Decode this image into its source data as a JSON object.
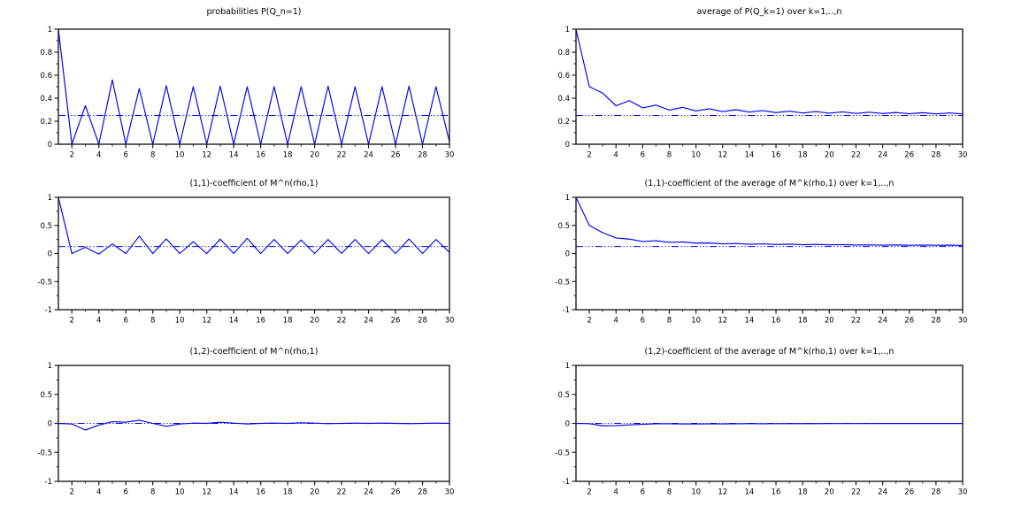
{
  "figure": {
    "background_color": "#ffffff",
    "line_color": "#0000ee",
    "reference_line_color": "#0000ee",
    "axis_color": "#1c1c1c",
    "text_color": "#000000"
  },
  "chart_data": [
    {
      "type": "line",
      "title": "probabilities P(Q_n=1)",
      "xlabel": "",
      "ylabel": "",
      "x": [
        1,
        2,
        3,
        4,
        5,
        6,
        7,
        8,
        9,
        10,
        11,
        12,
        13,
        14,
        15,
        16,
        17,
        18,
        19,
        20,
        21,
        22,
        23,
        24,
        25,
        26,
        27,
        28,
        29,
        30
      ],
      "values": [
        1,
        0,
        0.335,
        0,
        0.56,
        0,
        0.485,
        0,
        0.51,
        0,
        0.5,
        0,
        0.505,
        0,
        0.5,
        0,
        0.5,
        0,
        0.5,
        0,
        0.505,
        0,
        0.5,
        0,
        0.5,
        0,
        0.505,
        0,
        0.5,
        0.02
      ],
      "reference_line": 0.25,
      "xlim": [
        1,
        30
      ],
      "ylim": [
        0,
        1
      ],
      "xticks": [
        2,
        4,
        6,
        8,
        10,
        12,
        14,
        16,
        18,
        20,
        22,
        24,
        26,
        28,
        30
      ],
      "x_minor_step": 1,
      "yticks": [
        0,
        0.2,
        0.4,
        0.6,
        0.8,
        1
      ],
      "ytick_labels": [
        "0",
        "0.2",
        "0.4",
        "0.6",
        "0.8",
        "1"
      ],
      "y_minor_step": 0.1,
      "grid": false,
      "legend": null
    },
    {
      "type": "line",
      "title": "average of P(Q_k=1) over k=1,..,n",
      "xlabel": "",
      "ylabel": "",
      "x": [
        1,
        2,
        3,
        4,
        5,
        6,
        7,
        8,
        9,
        10,
        11,
        12,
        13,
        14,
        15,
        16,
        17,
        18,
        19,
        20,
        21,
        22,
        23,
        24,
        25,
        26,
        27,
        28,
        29,
        30
      ],
      "values": [
        1,
        0.5,
        0.445,
        0.334,
        0.379,
        0.316,
        0.34,
        0.297,
        0.321,
        0.289,
        0.308,
        0.283,
        0.3,
        0.279,
        0.293,
        0.275,
        0.288,
        0.272,
        0.284,
        0.27,
        0.281,
        0.268,
        0.278,
        0.267,
        0.276,
        0.265,
        0.274,
        0.264,
        0.272,
        0.264
      ],
      "reference_line": 0.25,
      "xlim": [
        1,
        30
      ],
      "ylim": [
        0,
        1
      ],
      "xticks": [
        2,
        4,
        6,
        8,
        10,
        12,
        14,
        16,
        18,
        20,
        22,
        24,
        26,
        28,
        30
      ],
      "x_minor_step": 1,
      "yticks": [
        0,
        0.2,
        0.4,
        0.6,
        0.8,
        1
      ],
      "ytick_labels": [
        "0",
        "0.2",
        "0.4",
        "0.6",
        "0.8",
        "1"
      ],
      "y_minor_step": 0.1,
      "grid": false,
      "legend": null
    },
    {
      "type": "line",
      "title": "(1,1)-coefficient of M^n(rho,1)",
      "xlabel": "",
      "ylabel": "",
      "x": [
        1,
        2,
        3,
        4,
        5,
        6,
        7,
        8,
        9,
        10,
        11,
        12,
        13,
        14,
        15,
        16,
        17,
        18,
        19,
        20,
        21,
        22,
        23,
        24,
        25,
        26,
        27,
        28,
        29,
        30
      ],
      "values": [
        1,
        0,
        0.11,
        -0.01,
        0.17,
        0,
        0.31,
        0,
        0.26,
        0,
        0.21,
        0,
        0.255,
        0,
        0.27,
        0,
        0.25,
        0,
        0.24,
        0,
        0.25,
        0,
        0.25,
        0,
        0.245,
        0,
        0.26,
        0,
        0.25,
        0.02
      ],
      "reference_line": 0.125,
      "xlim": [
        1,
        30
      ],
      "ylim": [
        -1,
        1
      ],
      "xticks": [
        2,
        4,
        6,
        8,
        10,
        12,
        14,
        16,
        18,
        20,
        22,
        24,
        26,
        28,
        30
      ],
      "x_minor_step": 1,
      "yticks": [
        -1,
        -0.5,
        0,
        0.5,
        1
      ],
      "ytick_labels": [
        "-1",
        "-0.5",
        "0",
        "0.5",
        "1"
      ],
      "y_minor_step": 0.25,
      "grid": false,
      "legend": null
    },
    {
      "type": "line",
      "title": "(1,1)-coefficient of the average of M^k(rho,1) over k=1,..,n",
      "xlabel": "",
      "ylabel": "",
      "x": [
        1,
        2,
        3,
        4,
        5,
        6,
        7,
        8,
        9,
        10,
        11,
        12,
        13,
        14,
        15,
        16,
        17,
        18,
        19,
        20,
        21,
        22,
        23,
        24,
        25,
        26,
        27,
        28,
        29,
        30
      ],
      "values": [
        1,
        0.5,
        0.37,
        0.277,
        0.256,
        0.213,
        0.227,
        0.199,
        0.206,
        0.185,
        0.187,
        0.172,
        0.178,
        0.165,
        0.172,
        0.161,
        0.166,
        0.157,
        0.162,
        0.154,
        0.158,
        0.151,
        0.155,
        0.149,
        0.153,
        0.147,
        0.151,
        0.146,
        0.149,
        0.145
      ],
      "reference_line": 0.125,
      "xlim": [
        1,
        30
      ],
      "ylim": [
        -1,
        1
      ],
      "xticks": [
        2,
        4,
        6,
        8,
        10,
        12,
        14,
        16,
        18,
        20,
        22,
        24,
        26,
        28,
        30
      ],
      "x_minor_step": 1,
      "yticks": [
        -1,
        -0.5,
        0,
        0.5,
        1
      ],
      "ytick_labels": [
        "-1",
        "-0.5",
        "0",
        "0.5",
        "1"
      ],
      "y_minor_step": 0.25,
      "grid": false,
      "legend": null
    },
    {
      "type": "line",
      "title": "(1,2)-coefficient of M^n(rho,1)",
      "xlabel": "",
      "ylabel": "",
      "x": [
        1,
        2,
        3,
        4,
        5,
        6,
        7,
        8,
        9,
        10,
        11,
        12,
        13,
        14,
        15,
        16,
        17,
        18,
        19,
        20,
        21,
        22,
        23,
        24,
        25,
        26,
        27,
        28,
        29,
        30
      ],
      "values": [
        0,
        -0.01,
        -0.115,
        -0.03,
        0.03,
        0.02,
        0.055,
        0,
        -0.05,
        -0.01,
        0.005,
        0,
        0.02,
        0.005,
        -0.01,
        0,
        0.005,
        0,
        0.01,
        0.005,
        -0.005,
        0,
        0.005,
        0,
        0.005,
        0,
        -0.005,
        0,
        0.005,
        0
      ],
      "reference_line": 0,
      "xlim": [
        1,
        30
      ],
      "ylim": [
        -1,
        1
      ],
      "xticks": [
        2,
        4,
        6,
        8,
        10,
        12,
        14,
        16,
        18,
        20,
        22,
        24,
        26,
        28,
        30
      ],
      "x_minor_step": 1,
      "yticks": [
        -1,
        -0.5,
        0,
        0.5,
        1
      ],
      "ytick_labels": [
        "-1",
        "-0.5",
        "0",
        "0.5",
        "1"
      ],
      "y_minor_step": 0.25,
      "grid": false,
      "legend": null
    },
    {
      "type": "line",
      "title": "(1,2)-coefficient of the average of M^k(rho,1) over k=1,..,n",
      "xlabel": "",
      "ylabel": "",
      "x": [
        1,
        2,
        3,
        4,
        5,
        6,
        7,
        8,
        9,
        10,
        11,
        12,
        13,
        14,
        15,
        16,
        17,
        18,
        19,
        20,
        21,
        22,
        23,
        24,
        25,
        26,
        27,
        28,
        29,
        30
      ],
      "values": [
        0,
        -0.005,
        -0.042,
        -0.039,
        -0.025,
        -0.017,
        -0.007,
        -0.006,
        -0.011,
        -0.01,
        -0.008,
        -0.008,
        -0.006,
        -0.005,
        -0.006,
        -0.005,
        -0.005,
        -0.004,
        -0.004,
        -0.003,
        -0.003,
        -0.003,
        -0.003,
        -0.002,
        -0.002,
        -0.002,
        -0.002,
        -0.002,
        -0.002,
        -0.002
      ],
      "reference_line": 0,
      "xlim": [
        1,
        30
      ],
      "ylim": [
        -1,
        1
      ],
      "xticks": [
        2,
        4,
        6,
        8,
        10,
        12,
        14,
        16,
        18,
        20,
        22,
        24,
        26,
        28,
        30
      ],
      "x_minor_step": 1,
      "yticks": [
        -1,
        -0.5,
        0,
        0.5,
        1
      ],
      "ytick_labels": [
        "-1",
        "-0.5",
        "0",
        "0.5",
        "1"
      ],
      "y_minor_step": 0.25,
      "grid": false,
      "legend": null
    }
  ]
}
